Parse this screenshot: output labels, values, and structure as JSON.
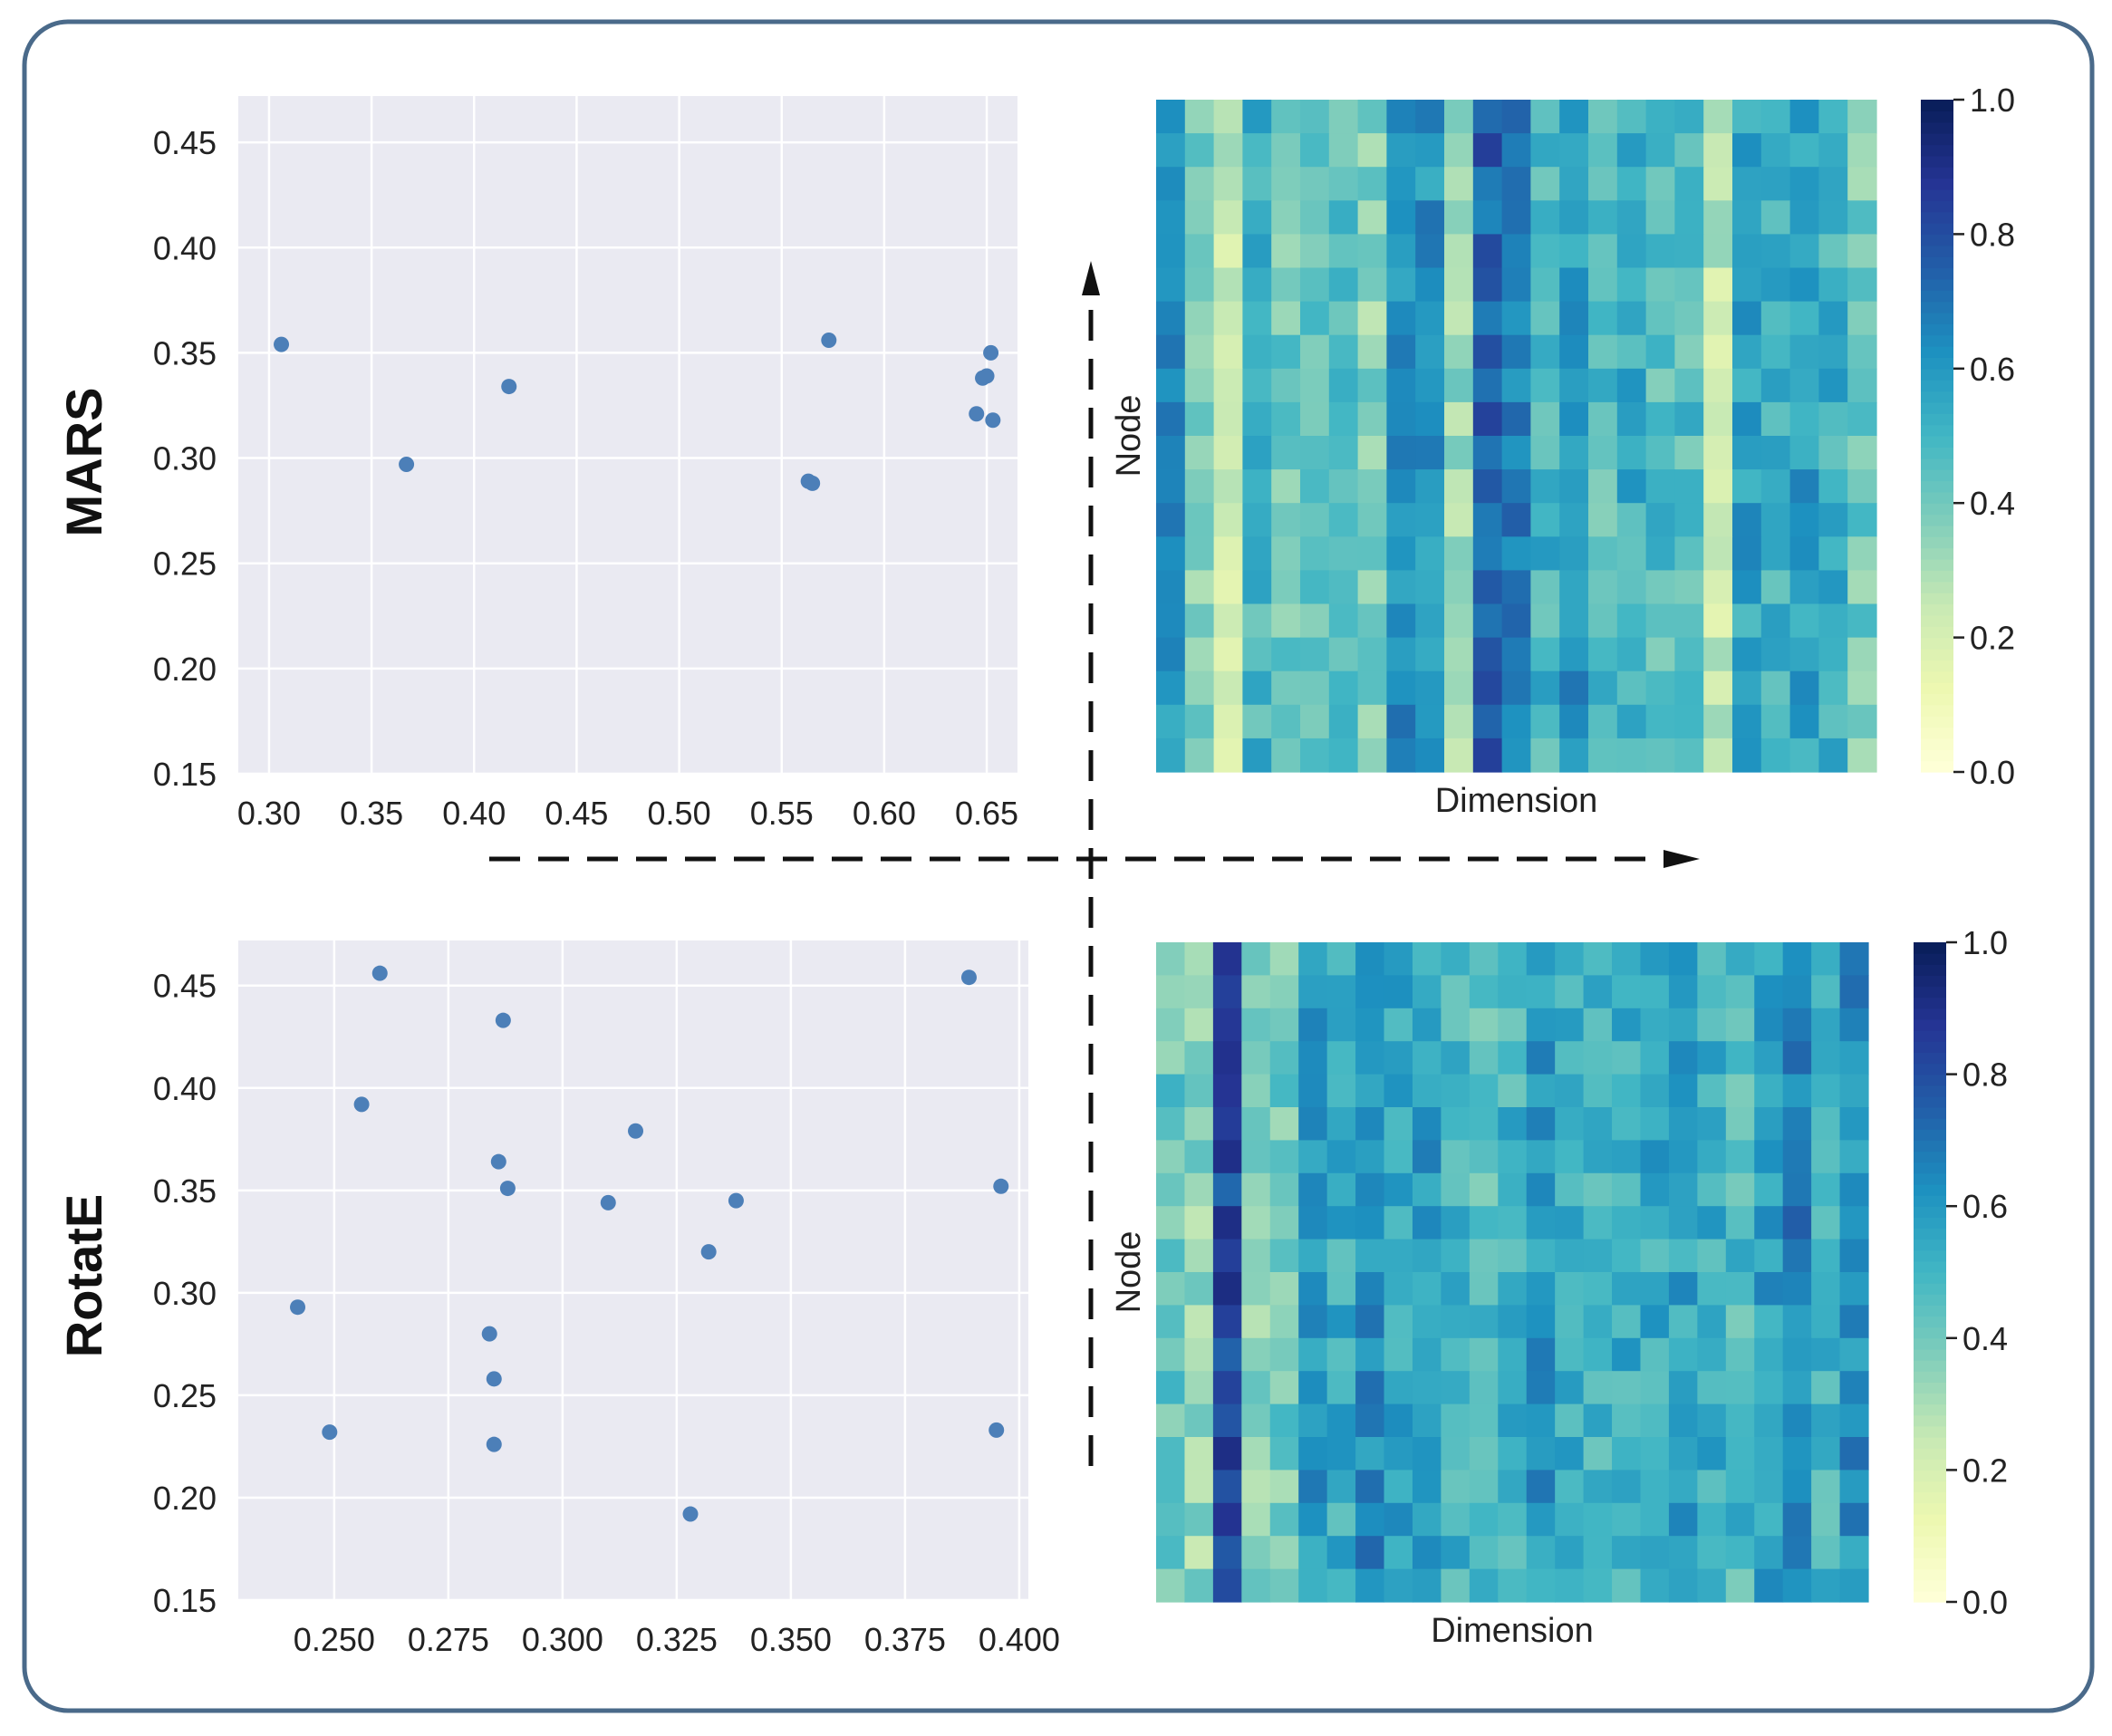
{
  "figure": {
    "row_labels": [
      "MARS",
      "RotatE"
    ],
    "colors": {
      "frame": "#4a6a8a",
      "plot_bg": "#eaeaf2",
      "grid": "#ffffff",
      "point": "#4c7fb8",
      "arrow": "#111111",
      "text": "#222222"
    }
  },
  "chart_data": [
    {
      "id": "mars-scatter",
      "type": "scatter",
      "title": "",
      "row_label": "MARS",
      "xlabel": "",
      "ylabel": "",
      "xlim": [
        0.285,
        0.665
      ],
      "ylim": [
        0.15,
        0.472
      ],
      "xticks": [
        0.3,
        0.35,
        0.4,
        0.45,
        0.5,
        0.55,
        0.6,
        0.65
      ],
      "xtick_labels": [
        "0.30",
        "0.35",
        "0.40",
        "0.45",
        "0.50",
        "0.55",
        "0.60",
        "0.65"
      ],
      "yticks": [
        0.15,
        0.2,
        0.25,
        0.3,
        0.35,
        0.4,
        0.45
      ],
      "ytick_labels": [
        "0.15",
        "0.20",
        "0.25",
        "0.30",
        "0.35",
        "0.40",
        "0.45"
      ],
      "grid": true,
      "points": [
        {
          "x": 0.306,
          "y": 0.354
        },
        {
          "x": 0.367,
          "y": 0.297
        },
        {
          "x": 0.417,
          "y": 0.334
        },
        {
          "x": 0.563,
          "y": 0.289
        },
        {
          "x": 0.565,
          "y": 0.288
        },
        {
          "x": 0.573,
          "y": 0.356
        },
        {
          "x": 0.645,
          "y": 0.321
        },
        {
          "x": 0.648,
          "y": 0.338
        },
        {
          "x": 0.65,
          "y": 0.339
        },
        {
          "x": 0.652,
          "y": 0.35
        },
        {
          "x": 0.653,
          "y": 0.318
        }
      ]
    },
    {
      "id": "mars-heatmap",
      "type": "heatmap",
      "title": "",
      "row_label": "MARS",
      "xlabel": "Dimension",
      "ylabel": "Node",
      "colormap": "YlGnBu",
      "vmin": 0.0,
      "vmax": 1.0,
      "colorbar_ticks": [
        0.0,
        0.2,
        0.4,
        0.6,
        0.8,
        1.0
      ],
      "colorbar_tick_labels": [
        "0.0",
        "0.2",
        "0.4",
        "0.6",
        "0.8",
        "1.0"
      ],
      "rows": 20,
      "cols": 25,
      "column_means": [
        0.6,
        0.38,
        0.25,
        0.5,
        0.4,
        0.42,
        0.44,
        0.36,
        0.62,
        0.62,
        0.34,
        0.75,
        0.68,
        0.5,
        0.6,
        0.46,
        0.52,
        0.46,
        0.46,
        0.24,
        0.56,
        0.5,
        0.58,
        0.52,
        0.4
      ]
    },
    {
      "id": "rotate-scatter",
      "type": "scatter",
      "title": "",
      "row_label": "RotatE",
      "xlabel": "",
      "ylabel": "",
      "xlim": [
        0.229,
        0.402
      ],
      "ylim": [
        0.15,
        0.472
      ],
      "xticks": [
        0.25,
        0.275,
        0.3,
        0.325,
        0.35,
        0.375,
        0.4
      ],
      "xtick_labels": [
        "0.250",
        "0.275",
        "0.300",
        "0.325",
        "0.350",
        "0.375",
        "0.400"
      ],
      "yticks": [
        0.15,
        0.2,
        0.25,
        0.3,
        0.35,
        0.4,
        0.45
      ],
      "ytick_labels": [
        "0.15",
        "0.20",
        "0.25",
        "0.30",
        "0.35",
        "0.40",
        "0.45"
      ],
      "grid": true,
      "points": [
        {
          "x": 0.242,
          "y": 0.293
        },
        {
          "x": 0.249,
          "y": 0.232
        },
        {
          "x": 0.256,
          "y": 0.392
        },
        {
          "x": 0.26,
          "y": 0.456
        },
        {
          "x": 0.284,
          "y": 0.28
        },
        {
          "x": 0.285,
          "y": 0.226
        },
        {
          "x": 0.285,
          "y": 0.258
        },
        {
          "x": 0.286,
          "y": 0.364
        },
        {
          "x": 0.287,
          "y": 0.433
        },
        {
          "x": 0.288,
          "y": 0.351
        },
        {
          "x": 0.31,
          "y": 0.344
        },
        {
          "x": 0.316,
          "y": 0.379
        },
        {
          "x": 0.328,
          "y": 0.192
        },
        {
          "x": 0.332,
          "y": 0.32
        },
        {
          "x": 0.338,
          "y": 0.345
        },
        {
          "x": 0.389,
          "y": 0.454
        },
        {
          "x": 0.395,
          "y": 0.233
        },
        {
          "x": 0.396,
          "y": 0.352
        }
      ]
    },
    {
      "id": "rotate-heatmap",
      "type": "heatmap",
      "title": "",
      "row_label": "RotatE",
      "xlabel": "Dimension",
      "ylabel": "Node",
      "colormap": "YlGnBu",
      "vmin": 0.0,
      "vmax": 1.0,
      "colorbar_ticks": [
        0.0,
        0.2,
        0.4,
        0.6,
        0.8,
        1.0
      ],
      "colorbar_tick_labels": [
        "0.0",
        "0.2",
        "0.4",
        "0.6",
        "0.8",
        "1.0"
      ],
      "rows": 20,
      "cols": 25,
      "column_means": [
        0.42,
        0.34,
        0.82,
        0.36,
        0.4,
        0.6,
        0.52,
        0.64,
        0.56,
        0.58,
        0.5,
        0.46,
        0.5,
        0.6,
        0.52,
        0.5,
        0.52,
        0.54,
        0.56,
        0.52,
        0.48,
        0.58,
        0.66,
        0.48,
        0.62
      ]
    }
  ]
}
